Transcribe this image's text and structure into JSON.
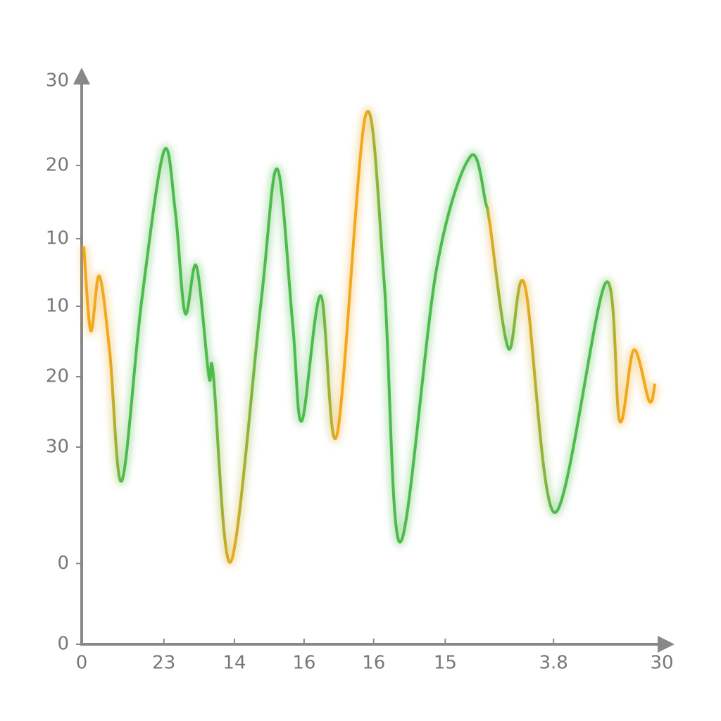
{
  "chart_data": {
    "type": "line",
    "x": [
      0.11,
      0.47,
      0.91,
      1.45,
      2.07,
      3.09,
      4.25,
      4.84,
      5.35,
      5.93,
      6.58,
      6.8,
      7.71,
      9.27,
      10.11,
      10.91,
      11.38,
      12.36,
      13.2,
      14.69,
      15.64,
      16.47,
      18.36,
      20.11,
      20.91,
      21.09,
      22.07,
      22.91,
      24.47,
      27.09,
      27.82,
      28.55,
      29.35,
      29.64
    ],
    "series": [
      {
        "color": "#4cbb4c",
        "values": [
          21.19,
          16.69,
          19.61,
          15.56,
          8.7,
          18.19,
          26.25,
          23.06,
          17.63,
          20.14,
          14.25,
          14.44,
          4.39,
          18.19,
          25.31,
          17.06,
          11.89,
          18.56,
          11.14,
          28.2,
          19.31,
          5.44,
          20.06,
          25.99,
          23.44,
          22.5,
          15.75,
          19.13,
          7.01,
          19.24,
          11.89,
          15.68,
          12.94,
          13.88
        ],
        "point_colors": [
          "#f2a81d",
          "#f2a81d",
          "#f2a81d",
          "#f2a81d",
          "#4cbb4c",
          "#4cbb4c",
          "#4cbb4c",
          "#4cbb4c",
          "#4cbb4c",
          "#4cbb4c",
          "#4cbb4c",
          "#4cbb4c",
          "#f2a81d",
          "#4cbb4c",
          "#4cbb4c",
          "#4cbb4c",
          "#4cbb4c",
          "#4cbb4c",
          "#f2a81d",
          "#f2a81d",
          "#4cbb4c",
          "#4cbb4c",
          "#4cbb4c",
          "#4cbb4c",
          "#4cbb4c",
          "#f2a81d",
          "#4cbb4c",
          "#f2a81d",
          "#4cbb4c",
          "#4cbb4c",
          "#f2a81d",
          "#f2a81d",
          "#f2a81d",
          "#f2a81d"
        ]
      }
    ],
    "xlim": [
      0,
      30
    ],
    "ylim": [
      0,
      30
    ],
    "xticks": [
      0,
      {
        "value": 4.25,
        "label": "23"
      },
      {
        "value": 7.9,
        "label": "14"
      },
      {
        "value": 11.5,
        "label": "16"
      },
      {
        "value": 15.1,
        "label": "16"
      },
      {
        "value": 18.8,
        "label": "15"
      },
      {
        "value": 24.4,
        "label": "3.8"
      },
      30
    ],
    "yticks": [
      0,
      {
        "value": 4.3,
        "label": "0"
      },
      {
        "value": 10.5,
        "label": "30"
      },
      {
        "value": 14.25,
        "label": "20"
      },
      {
        "value": 18,
        "label": "10"
      },
      {
        "value": 21.6,
        "label": "10"
      },
      {
        "value": 25.5,
        "label": "20"
      },
      30
    ]
  }
}
